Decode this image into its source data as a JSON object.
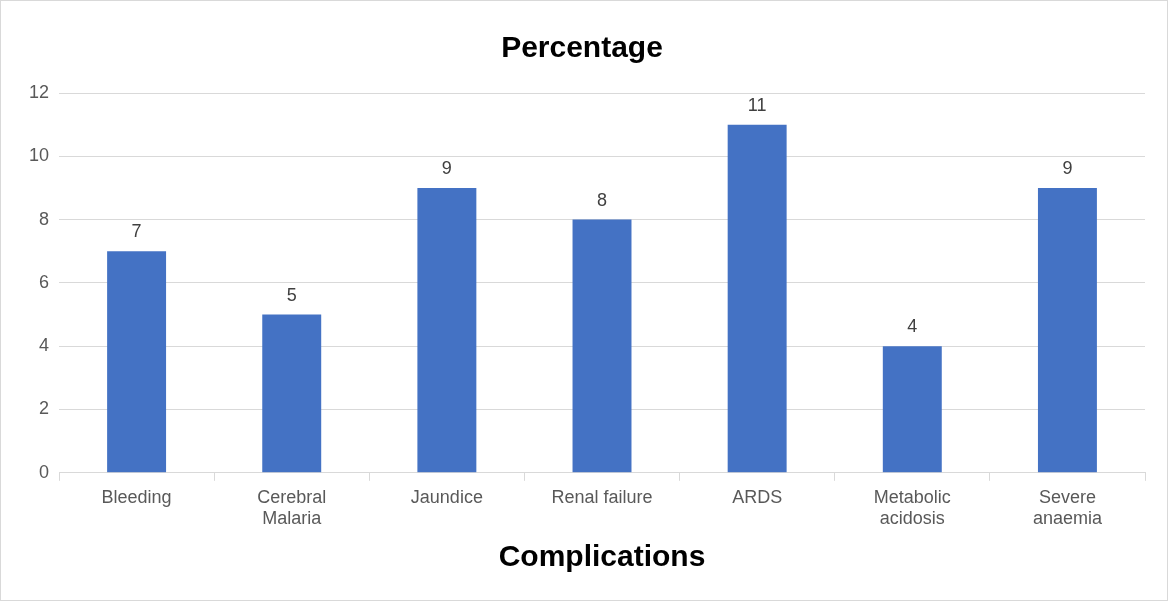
{
  "chart_data": {
    "type": "bar",
    "title": "Percentage",
    "xlabel": "Complications",
    "categories": [
      "Bleeding",
      "Cerebral Malaria",
      "Jaundice",
      "Renal failure",
      "ARDS",
      "Metabolic acidosis",
      "Severe anaemia"
    ],
    "values": [
      7,
      5,
      9,
      8,
      11,
      4,
      9
    ],
    "color": "#4472c4",
    "ylim": [
      0,
      12
    ],
    "yticks": [
      0,
      2,
      4,
      6,
      8,
      10,
      12
    ],
    "grid": "y",
    "legend": false,
    "data_labels": true
  }
}
